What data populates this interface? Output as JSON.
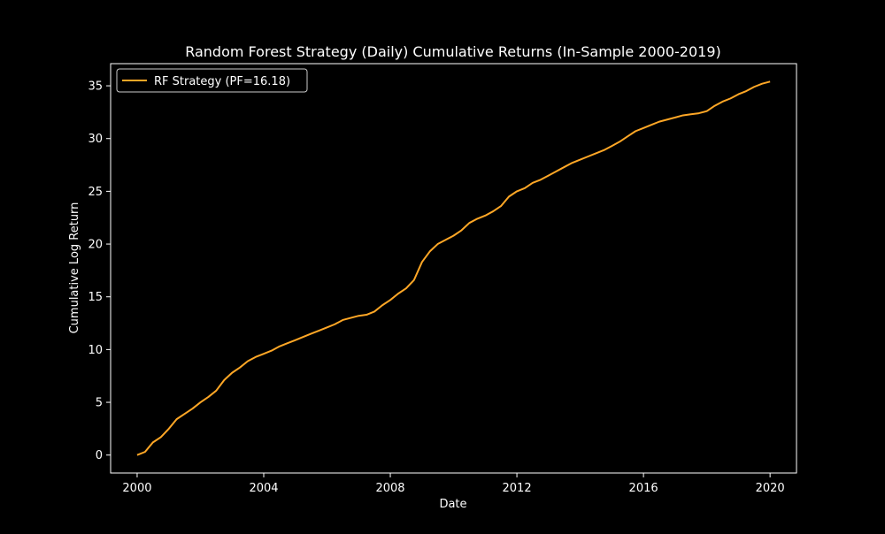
{
  "chart_data": {
    "type": "line",
    "title": "Random Forest Strategy (Daily) Cumulative Returns (In-Sample 2000-2019)",
    "xlabel": "Date",
    "ylabel": "Cumulative Log Return",
    "xlim": [
      "1999-03-01",
      "2020-11-01"
    ],
    "ylim": [
      -1.7,
      37.1
    ],
    "x_ticks": [
      "2000",
      "2004",
      "2008",
      "2012",
      "2016",
      "2020"
    ],
    "y_ticks": [
      0,
      5,
      10,
      15,
      20,
      25,
      30,
      35
    ],
    "legend_position": "top-left",
    "grid": false,
    "series": [
      {
        "name": "RF Strategy (PF=16.18)",
        "color": "#ffa726",
        "x": [
          "2000-01-01",
          "2000-04-01",
          "2000-07-01",
          "2000-10-01",
          "2001-01-01",
          "2001-04-01",
          "2001-07-01",
          "2001-10-01",
          "2002-01-01",
          "2002-04-01",
          "2002-07-01",
          "2002-10-01",
          "2003-01-01",
          "2003-04-01",
          "2003-07-01",
          "2003-10-01",
          "2004-01-01",
          "2004-04-01",
          "2004-07-01",
          "2004-10-01",
          "2005-01-01",
          "2005-04-01",
          "2005-07-01",
          "2005-10-01",
          "2006-01-01",
          "2006-04-01",
          "2006-07-01",
          "2006-10-01",
          "2007-01-01",
          "2007-04-01",
          "2007-07-01",
          "2007-10-01",
          "2008-01-01",
          "2008-04-01",
          "2008-07-01",
          "2008-10-01",
          "2009-01-01",
          "2009-04-01",
          "2009-07-01",
          "2009-10-01",
          "2010-01-01",
          "2010-04-01",
          "2010-07-01",
          "2010-10-01",
          "2011-01-01",
          "2011-04-01",
          "2011-07-01",
          "2011-10-01",
          "2012-01-01",
          "2012-04-01",
          "2012-07-01",
          "2012-10-01",
          "2013-01-01",
          "2013-04-01",
          "2013-07-01",
          "2013-10-01",
          "2014-01-01",
          "2014-04-01",
          "2014-07-01",
          "2014-10-01",
          "2015-01-01",
          "2015-04-01",
          "2015-07-01",
          "2015-10-01",
          "2016-01-01",
          "2016-04-01",
          "2016-07-01",
          "2016-10-01",
          "2017-01-01",
          "2017-04-01",
          "2017-07-01",
          "2017-10-01",
          "2018-01-01",
          "2018-04-01",
          "2018-07-01",
          "2018-10-01",
          "2019-01-01",
          "2019-04-01",
          "2019-07-01",
          "2019-10-01",
          "2020-01-01"
        ],
        "y": [
          0.0,
          0.3,
          1.2,
          1.7,
          2.5,
          3.4,
          3.9,
          4.4,
          5.0,
          5.5,
          6.1,
          7.1,
          7.8,
          8.3,
          8.9,
          9.3,
          9.6,
          9.9,
          10.3,
          10.6,
          10.9,
          11.2,
          11.5,
          11.8,
          12.1,
          12.4,
          12.8,
          13.0,
          13.2,
          13.3,
          13.6,
          14.2,
          14.7,
          15.3,
          15.8,
          16.6,
          18.3,
          19.3,
          20.0,
          20.4,
          20.8,
          21.3,
          22.0,
          22.4,
          22.7,
          23.1,
          23.6,
          24.5,
          25.0,
          25.3,
          25.8,
          26.1,
          26.5,
          26.9,
          27.3,
          27.7,
          28.0,
          28.3,
          28.6,
          28.9,
          29.3,
          29.7,
          30.2,
          30.7,
          31.0,
          31.3,
          31.6,
          31.8,
          32.0,
          32.2,
          32.3,
          32.4,
          32.6,
          33.1,
          33.5,
          33.8,
          34.2,
          34.5,
          34.9,
          35.2,
          35.4
        ]
      }
    ]
  }
}
